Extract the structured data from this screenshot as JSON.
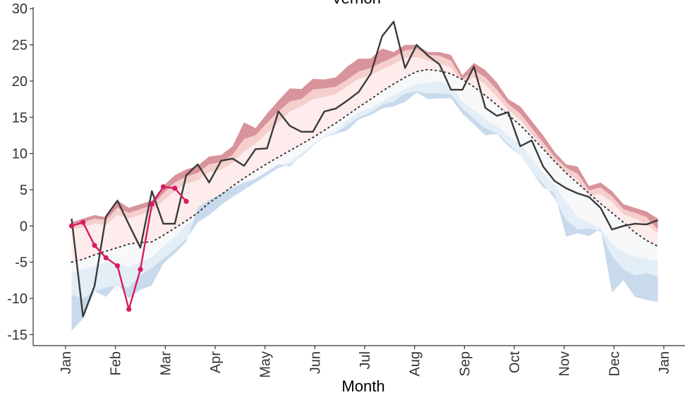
{
  "chart_data": {
    "type": "area",
    "title": "Vernon",
    "xlabel": "Month",
    "ylabel": "",
    "ylim": [
      -16,
      30
    ],
    "xlim": [
      0,
      12
    ],
    "grid": false,
    "y_ticks": [
      -15,
      -10,
      -5,
      0,
      5,
      10,
      15,
      20,
      25,
      30
    ],
    "x_ticks": [
      {
        "label": "Jan",
        "month": 0
      },
      {
        "label": "Feb",
        "month": 1
      },
      {
        "label": "Mar",
        "month": 2
      },
      {
        "label": "Apr",
        "month": 3
      },
      {
        "label": "May",
        "month": 4
      },
      {
        "label": "Jun",
        "month": 5
      },
      {
        "label": "Jul",
        "month": 6
      },
      {
        "label": "Aug",
        "month": 7
      },
      {
        "label": "Sep",
        "month": 8
      },
      {
        "label": "Oct",
        "month": 9
      },
      {
        "label": "Nov",
        "month": 10
      },
      {
        "label": "Dec",
        "month": 11
      },
      {
        "label": "Jan",
        "month": 12
      }
    ],
    "x": [
      0.12,
      0.35,
      0.58,
      0.81,
      1.04,
      1.27,
      1.5,
      1.73,
      1.96,
      2.19,
      2.42,
      2.65,
      2.88,
      3.12,
      3.35,
      3.58,
      3.81,
      4.04,
      4.27,
      4.5,
      4.73,
      4.96,
      5.19,
      5.42,
      5.65,
      5.88,
      6.12,
      6.35,
      6.58,
      6.81,
      7.04,
      7.27,
      7.5,
      7.73,
      7.96,
      8.19,
      8.42,
      8.65,
      8.88,
      9.12,
      9.35,
      9.58,
      9.81,
      10.04,
      10.27,
      10.5,
      10.73,
      10.96,
      11.19,
      11.42,
      11.65,
      11.88
    ],
    "bands": [
      {
        "name": "record_high",
        "color": "#d9939b",
        "values": [
          0.5,
          1,
          1.5,
          1.2,
          3.5,
          2.5,
          3,
          3.5,
          5.5,
          7,
          7.8,
          8.3,
          9.6,
          9.8,
          11,
          14.3,
          13.5,
          15.5,
          17.3,
          19,
          18.9,
          20.3,
          20.2,
          20.5,
          22,
          23.1,
          23.1,
          24.5,
          24,
          25,
          25,
          24,
          24,
          23.6,
          20.8,
          22.5,
          21.5,
          19.8,
          17.5,
          16.5,
          14.5,
          12.5,
          10.2,
          8.5,
          8.2,
          5.5,
          6,
          4.8,
          3,
          2.5,
          2,
          1
        ]
      },
      {
        "name": "p90_high",
        "color": "#f4cfcc",
        "values": [
          0.2,
          0.5,
          1,
          0.8,
          2.5,
          1.8,
          2.3,
          2.8,
          4.5,
          6,
          6.8,
          7.3,
          8.5,
          8.8,
          9.8,
          12,
          12.5,
          14.2,
          15.8,
          17.2,
          17.5,
          18.8,
          19,
          19.2,
          20.2,
          21.3,
          21.8,
          22.6,
          23.3,
          24.2,
          24.5,
          23.6,
          23.5,
          22.8,
          20.2,
          21.5,
          20.5,
          18.8,
          16.8,
          15.5,
          13.5,
          11.5,
          9.5,
          8,
          7.2,
          4.9,
          5.3,
          4.1,
          2.3,
          1.8,
          1.2,
          -0.5
        ]
      },
      {
        "name": "p75_high",
        "color": "#fdeceb",
        "values": [
          -0.5,
          -0.2,
          0.3,
          0.1,
          1.5,
          1,
          1.5,
          2,
          3.5,
          4.8,
          5.8,
          6.3,
          7.4,
          7.8,
          8.7,
          10.3,
          11.3,
          12.8,
          14.3,
          15.8,
          16.5,
          17.5,
          17.8,
          18.2,
          19.3,
          20.3,
          20.8,
          21.6,
          22.3,
          23.2,
          23.3,
          22.8,
          22.5,
          21.8,
          19.7,
          20.5,
          19.5,
          17.8,
          16,
          14.6,
          12.7,
          10.8,
          8.8,
          7.4,
          6.3,
          4.2,
          4.4,
          3.3,
          1.6,
          1,
          0.2,
          -1
        ]
      },
      {
        "name": "median",
        "color": "#f7f8fa",
        "values": [
          -5,
          -4.6,
          -4,
          -3.5,
          -3,
          -2.5,
          -2.3,
          -2.2,
          -1.3,
          -0.3,
          0.7,
          1.8,
          3.2,
          4.3,
          5.5,
          6.6,
          7.6,
          8.6,
          9.5,
          10.4,
          11.3,
          12.2,
          13.2,
          14.2,
          15.3,
          16.4,
          17.5,
          18.6,
          19.6,
          20.5,
          21.3,
          21.6,
          21.4,
          21,
          20.2,
          19.2,
          18,
          16.7,
          15.3,
          13.9,
          12.3,
          10.6,
          8.9,
          7.3,
          5.9,
          4.5,
          3.1,
          1.8,
          0.5,
          -0.9,
          -2,
          -2.8
        ]
      },
      {
        "name": "p25_low",
        "color": "#e4eef7",
        "values": [
          -6.5,
          -6,
          -5.5,
          -5,
          -5.2,
          -5.7,
          -5,
          -4.3,
          -2.8,
          -1.5,
          0.2,
          1,
          2.2,
          3.5,
          4.5,
          5.4,
          6.5,
          7.5,
          8.3,
          8.9,
          10,
          11.3,
          12.4,
          13.2,
          14.6,
          15.7,
          16.3,
          17.2,
          18.1,
          18.9,
          19.6,
          19.8,
          20,
          19.3,
          17.2,
          16,
          14.7,
          13.8,
          12.5,
          11.2,
          9.4,
          7.3,
          5.6,
          3.4,
          1.2,
          0.5,
          -0.4,
          -2.5,
          -3.6,
          -4.2,
          -4.5,
          -4.8
        ]
      },
      {
        "name": "p10_low",
        "color": "#c8daec",
        "values": [
          -9.5,
          -10,
          -9,
          -8.5,
          -8.2,
          -8.5,
          -6.8,
          -5.8,
          -4.5,
          -3.2,
          -1.8,
          0.5,
          1.5,
          2.9,
          4,
          5,
          6,
          7,
          8,
          8.5,
          9.6,
          11,
          12.2,
          12.8,
          13.9,
          15,
          15.7,
          16.7,
          17.2,
          18.3,
          18.6,
          18.3,
          18.3,
          18.2,
          16.2,
          14.8,
          13.5,
          12.8,
          11.4,
          9.8,
          7.5,
          5.8,
          3.8,
          0.8,
          -0.5,
          -0.3,
          -0.8,
          -4.2,
          -6,
          -6.8,
          -6.5,
          -7
        ]
      },
      {
        "name": "record_low",
        "color": "#8fb0d6",
        "values": [
          -14.5,
          -12.8,
          -9,
          -9.8,
          -8,
          -10,
          -8.8,
          -8.2,
          -5.2,
          -3.8,
          -2.2,
          2.5,
          3.6,
          4.5,
          5.3,
          6,
          6.5,
          7.5,
          8.5,
          8.2,
          9.8,
          11,
          12.2,
          12.7,
          13.2,
          14.7,
          15.3,
          16.2,
          16.5,
          17.1,
          18.4,
          17.5,
          17.6,
          17.6,
          15.5,
          14,
          12.5,
          12.7,
          11,
          9.8,
          7.5,
          5.3,
          4.5,
          -1.5,
          -1,
          -1.4,
          -0.4,
          -9.2,
          -7.5,
          -9.8,
          -10.2,
          -10.5
        ]
      }
    ],
    "series": [
      {
        "color": "#3a3a3a",
        "style": "solid",
        "x": [
          0.12,
          0.35,
          0.58,
          0.81,
          1.04,
          1.27,
          1.5,
          1.73,
          1.96,
          2.19,
          2.42,
          2.65,
          2.88,
          3.12,
          3.35,
          3.58,
          3.81,
          4.04,
          4.27,
          4.5,
          4.73,
          4.96,
          5.19,
          5.42,
          5.65,
          5.88,
          6.12,
          6.35,
          6.58,
          6.81,
          7.04,
          7.27,
          7.5,
          7.73,
          7.96,
          8.19,
          8.42,
          8.65,
          8.88,
          9.12,
          9.35,
          9.58,
          9.81,
          10.04,
          10.27,
          10.5,
          10.73,
          10.96,
          11.19,
          11.42,
          11.65,
          11.88
        ],
        "values": [
          1,
          -12.5,
          -8.3,
          1.3,
          3.5,
          0.2,
          -3,
          4.8,
          0.3,
          0.3,
          7,
          8.5,
          6,
          9,
          9.3,
          8.3,
          10.6,
          10.7,
          15.8,
          13.8,
          13,
          13,
          15.8,
          16.2,
          17.3,
          18.5,
          21,
          26.2,
          28.2,
          21.8,
          25,
          23.5,
          22.3,
          18.8,
          18.8,
          22,
          16.3,
          15.2,
          15.7,
          11,
          11.8,
          8.2,
          6.2,
          5.2,
          4.5,
          4,
          2.5,
          -0.5,
          0,
          0.3,
          0.2,
          0.8
        ]
      },
      {
        "color": "#3a3a3a",
        "style": "dotted",
        "x": [
          0.12,
          0.35,
          0.58,
          0.81,
          1.04,
          1.27,
          1.5,
          1.73,
          1.96,
          2.19,
          2.42,
          2.65,
          2.88,
          3.12,
          3.35,
          3.58,
          3.81,
          4.04,
          4.27,
          4.5,
          4.73,
          4.96,
          5.19,
          5.42,
          5.65,
          5.88,
          6.12,
          6.35,
          6.58,
          6.81,
          7.04,
          7.27,
          7.5,
          7.73,
          7.96,
          8.19,
          8.42,
          8.65,
          8.88,
          9.12,
          9.35,
          9.58,
          9.81,
          10.04,
          10.27,
          10.5,
          10.73,
          10.96,
          11.19,
          11.42,
          11.65,
          11.88
        ],
        "values": [
          -5,
          -4.6,
          -4,
          -3.5,
          -3,
          -2.5,
          -2.3,
          -2.2,
          -1.3,
          -0.3,
          0.7,
          1.8,
          3.2,
          4.3,
          5.5,
          6.6,
          7.6,
          8.6,
          9.5,
          10.4,
          11.3,
          12.2,
          13.2,
          14.2,
          15.3,
          16.4,
          17.5,
          18.6,
          19.6,
          20.5,
          21.3,
          21.6,
          21.4,
          21,
          20.2,
          19.2,
          18,
          16.7,
          15.3,
          13.9,
          12.3,
          10.6,
          8.9,
          7.3,
          5.9,
          4.5,
          3.1,
          1.8,
          0.5,
          -0.9,
          -2,
          -2.8
        ]
      },
      {
        "color": "#d81b60",
        "style": "solid",
        "markers": true,
        "x": [
          0.12,
          0.35,
          0.58,
          0.81,
          1.04,
          1.27,
          1.5,
          1.73,
          1.96,
          2.19,
          2.42
        ],
        "values": [
          0,
          0.5,
          -2.7,
          -4.4,
          -5.5,
          -11.5,
          -6,
          3,
          5.4,
          5.2,
          3.4
        ]
      }
    ]
  }
}
